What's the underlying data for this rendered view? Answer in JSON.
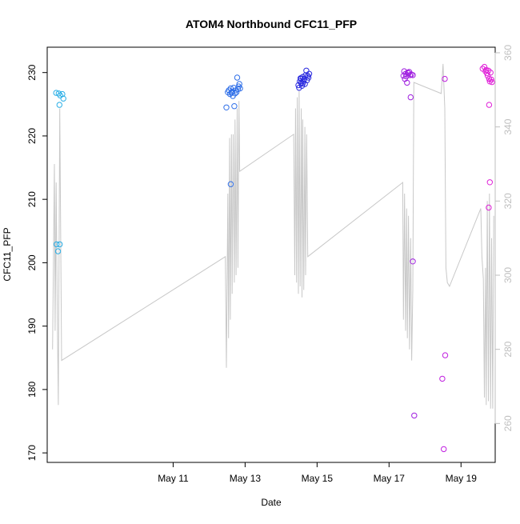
{
  "chart_data": {
    "type": "scatter",
    "title": "ATOM4 Northbound CFC11_PFP",
    "xlabel": "Date",
    "ylabel": "CFC11_PFP",
    "y2label": "",
    "x_range_days": [
      7.5,
      19.95
    ],
    "x_ticks": [
      {
        "day": 11,
        "label": "May 11"
      },
      {
        "day": 13,
        "label": "May 13"
      },
      {
        "day": 15,
        "label": "May 15"
      },
      {
        "day": 17,
        "label": "May 17"
      },
      {
        "day": 19,
        "label": "May 19"
      }
    ],
    "ylim": [
      168.5,
      234
    ],
    "y_ticks": [
      170,
      180,
      190,
      200,
      210,
      220,
      230
    ],
    "y2lim": [
      249.5,
      361.5
    ],
    "y2_ticks": [
      260,
      280,
      300,
      320,
      340,
      360
    ],
    "y2_color": "#bfbfbf",
    "line_color": "#c8c8c8",
    "grid": false,
    "legend": "none",
    "point_series": [
      {
        "color": "#29aee6",
        "points": [
          [
            7.75,
            226.8
          ],
          [
            7.82,
            226.7
          ],
          [
            7.86,
            226.4
          ],
          [
            7.92,
            226.6
          ],
          [
            7.95,
            225.9
          ],
          [
            7.84,
            224.9
          ],
          [
            7.76,
            202.9
          ],
          [
            7.85,
            202.9
          ],
          [
            7.8,
            201.8
          ]
        ]
      },
      {
        "color": "#2f6fe8",
        "points": [
          [
            12.48,
            224.5
          ],
          [
            12.52,
            226.9
          ],
          [
            12.55,
            227.2
          ],
          [
            12.58,
            226.6
          ],
          [
            12.6,
            227.5
          ],
          [
            12.62,
            226.8
          ],
          [
            12.64,
            227.0
          ],
          [
            12.66,
            226.3
          ],
          [
            12.68,
            227.6
          ],
          [
            12.7,
            224.7
          ],
          [
            12.72,
            226.7
          ],
          [
            12.74,
            227.2
          ],
          [
            12.76,
            226.9
          ],
          [
            12.78,
            229.2
          ],
          [
            12.8,
            227.4
          ],
          [
            12.82,
            227.8
          ],
          [
            12.84,
            228.2
          ],
          [
            12.86,
            227.5
          ],
          [
            12.6,
            212.4
          ]
        ]
      },
      {
        "color": "#2a2adf",
        "points": [
          [
            14.48,
            228.0
          ],
          [
            14.5,
            227.6
          ],
          [
            14.52,
            228.6
          ],
          [
            14.54,
            229.1
          ],
          [
            14.56,
            228.4
          ],
          [
            14.58,
            227.9
          ],
          [
            14.6,
            229.3
          ],
          [
            14.62,
            228.7
          ],
          [
            14.64,
            229.0
          ],
          [
            14.66,
            228.2
          ],
          [
            14.68,
            229.6
          ],
          [
            14.7,
            230.3
          ],
          [
            14.72,
            228.8
          ],
          [
            14.74,
            229.5
          ],
          [
            14.76,
            229.2
          ],
          [
            14.78,
            229.8
          ],
          [
            14.55,
            229.0
          ],
          [
            14.6,
            228.3
          ]
        ]
      },
      {
        "color": "#a020e0",
        "points": [
          [
            17.4,
            229.5
          ],
          [
            17.42,
            230.2
          ],
          [
            17.44,
            229.0
          ],
          [
            17.46,
            229.8
          ],
          [
            17.48,
            229.4
          ],
          [
            17.5,
            228.4
          ],
          [
            17.52,
            230.0
          ],
          [
            17.54,
            229.9
          ],
          [
            17.56,
            230.1
          ],
          [
            17.58,
            229.6
          ],
          [
            17.62,
            229.7
          ],
          [
            17.66,
            229.6
          ],
          [
            17.6,
            226.1
          ],
          [
            17.66,
            200.2
          ],
          [
            17.7,
            175.9
          ]
        ]
      },
      {
        "color": "#c020e0",
        "points": [
          [
            18.55,
            229.0
          ],
          [
            18.48,
            181.7
          ],
          [
            18.56,
            185.4
          ],
          [
            18.52,
            170.6
          ]
        ]
      },
      {
        "color": "#e020d8",
        "points": [
          [
            19.6,
            230.6
          ],
          [
            19.65,
            230.9
          ],
          [
            19.68,
            230.2
          ],
          [
            19.7,
            230.4
          ],
          [
            19.72,
            229.9
          ],
          [
            19.74,
            229.5
          ],
          [
            19.76,
            230.3
          ],
          [
            19.78,
            229.0
          ],
          [
            19.8,
            228.6
          ],
          [
            19.82,
            230.0
          ],
          [
            19.84,
            228.9
          ],
          [
            19.86,
            228.5
          ],
          [
            19.78,
            224.9
          ],
          [
            19.8,
            212.7
          ],
          [
            19.77,
            208.7
          ]
        ]
      }
    ],
    "line_series": {
      "axis": "right",
      "points": [
        [
          7.65,
          280
        ],
        [
          7.7,
          330
        ],
        [
          7.72,
          285
        ],
        [
          7.75,
          325
        ],
        [
          7.78,
          290
        ],
        [
          7.81,
          265
        ],
        [
          7.85,
          345
        ],
        [
          7.9,
          277
        ],
        [
          12.45,
          305
        ],
        [
          12.48,
          275
        ],
        [
          12.52,
          322
        ],
        [
          12.54,
          283
        ],
        [
          12.57,
          337
        ],
        [
          12.59,
          288
        ],
        [
          12.62,
          338
        ],
        [
          12.64,
          295
        ],
        [
          12.67,
          338
        ],
        [
          12.7,
          298
        ],
        [
          12.72,
          342
        ],
        [
          12.75,
          300
        ],
        [
          12.78,
          345
        ],
        [
          12.8,
          302
        ],
        [
          12.83,
          347
        ],
        [
          12.85,
          328
        ],
        [
          14.35,
          338
        ],
        [
          14.38,
          300
        ],
        [
          14.4,
          345
        ],
        [
          14.43,
          298
        ],
        [
          14.45,
          348
        ],
        [
          14.48,
          295
        ],
        [
          14.5,
          350
        ],
        [
          14.53,
          297
        ],
        [
          14.56,
          345
        ],
        [
          14.58,
          294
        ],
        [
          14.6,
          342
        ],
        [
          14.63,
          296
        ],
        [
          14.66,
          340
        ],
        [
          14.68,
          300
        ],
        [
          14.71,
          338
        ],
        [
          14.74,
          305
        ],
        [
          17.38,
          325
        ],
        [
          17.4,
          288
        ],
        [
          17.43,
          322
        ],
        [
          17.46,
          285
        ],
        [
          17.49,
          318
        ],
        [
          17.51,
          283
        ],
        [
          17.54,
          316
        ],
        [
          17.57,
          280
        ],
        [
          17.6,
          310
        ],
        [
          17.63,
          277
        ],
        [
          17.66,
          296
        ],
        [
          17.69,
          352
        ],
        [
          18.45,
          349
        ],
        [
          18.5,
          357
        ],
        [
          18.55,
          345
        ],
        [
          18.58,
          302
        ],
        [
          18.62,
          298
        ],
        [
          18.68,
          297
        ],
        [
          19.55,
          318
        ],
        [
          19.58,
          305
        ],
        [
          19.62,
          299
        ],
        [
          19.65,
          267
        ],
        [
          19.68,
          302
        ],
        [
          19.7,
          265
        ],
        [
          19.73,
          320
        ],
        [
          19.76,
          266
        ],
        [
          19.79,
          322
        ],
        [
          19.82,
          264
        ],
        [
          19.85,
          310
        ],
        [
          19.88,
          264
        ],
        [
          19.91,
          316
        ]
      ]
    }
  }
}
